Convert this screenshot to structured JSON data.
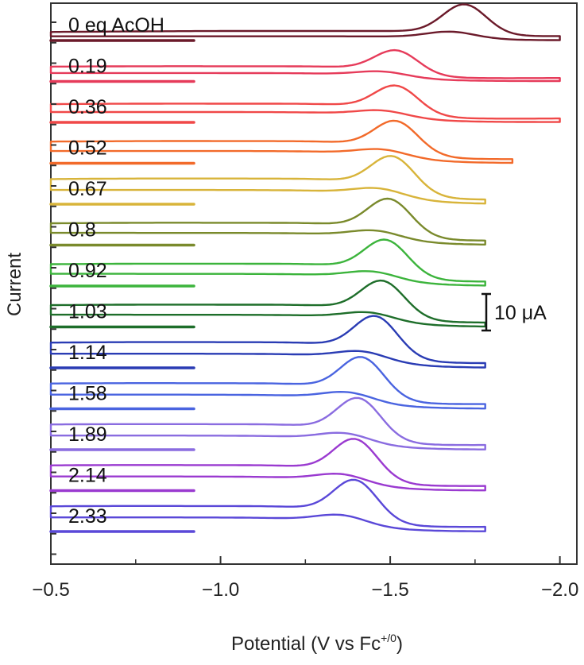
{
  "chart_data": {
    "type": "line",
    "title": "",
    "xlabel": "Potential (V vs Fc",
    "xlabel_sup": "+/0",
    "xlabel_suffix": ")",
    "ylabel": "Current",
    "xlim": [
      -0.5,
      -2.05
    ],
    "x_reversed": true,
    "x_ticks": [
      "-0.5",
      "-1.0",
      "-1.5",
      "-2.0"
    ],
    "x_tick_values": [
      -0.5,
      -1.0,
      -1.5,
      -2.0
    ],
    "scale_bar": {
      "label": "10 μA",
      "value_uA": 10
    },
    "series": [
      {
        "name": "0 eq AcOH",
        "color": "#6b1a2a",
        "x_end": -2.0,
        "peak_potential": -1.72,
        "peak_height_uA": 8,
        "plateau_uA": 2
      },
      {
        "name": "0.19",
        "color": "#e63b5a",
        "x_end": -2.0,
        "peak_potential": -1.52,
        "peak_height_uA": 6,
        "plateau_uA": 4
      },
      {
        "name": "0.36",
        "color": "#f04848",
        "x_end": -2.0,
        "peak_potential": -1.52,
        "peak_height_uA": 7,
        "plateau_uA": 5
      },
      {
        "name": "0.52",
        "color": "#f26a2a",
        "x_end": -1.86,
        "peak_potential": -1.52,
        "peak_height_uA": 8,
        "plateau_uA": 6
      },
      {
        "name": "0.67",
        "color": "#d8b43a",
        "x_end": -1.78,
        "peak_potential": -1.51,
        "peak_height_uA": 9,
        "plateau_uA": 7
      },
      {
        "name": "0.8",
        "color": "#7a8a2c",
        "x_end": -1.78,
        "peak_potential": -1.5,
        "peak_height_uA": 9,
        "plateau_uA": 6
      },
      {
        "name": "0.92",
        "color": "#3cb43c",
        "x_end": -1.78,
        "peak_potential": -1.49,
        "peak_height_uA": 9,
        "plateau_uA": 6
      },
      {
        "name": "1.03",
        "color": "#1e6e2a",
        "x_end": -1.78,
        "peak_potential": -1.48,
        "peak_height_uA": 9,
        "plateau_uA": 6
      },
      {
        "name": "1.14",
        "color": "#2a3cb4",
        "x_end": -1.78,
        "peak_potential": -1.46,
        "peak_height_uA": 10,
        "plateau_uA": 7
      },
      {
        "name": "1.58",
        "color": "#4a64e0",
        "x_end": -1.78,
        "peak_potential": -1.42,
        "peak_height_uA": 10,
        "plateau_uA": 7
      },
      {
        "name": "1.89",
        "color": "#8a6ce0",
        "x_end": -1.78,
        "peak_potential": -1.41,
        "peak_height_uA": 10,
        "plateau_uA": 7
      },
      {
        "name": "2.14",
        "color": "#9a3ad0",
        "x_end": -1.78,
        "peak_potential": -1.4,
        "peak_height_uA": 10,
        "plateau_uA": 7
      },
      {
        "name": "2.33",
        "color": "#5a48d8",
        "x_end": -1.78,
        "peak_potential": -1.4,
        "peak_height_uA": 10,
        "plateau_uA": 7
      }
    ]
  }
}
